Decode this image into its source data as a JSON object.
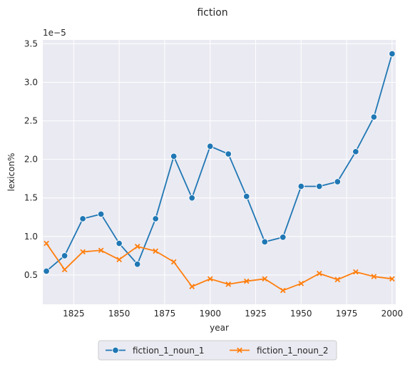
{
  "chart_data": {
    "type": "line",
    "title": "fiction",
    "xlabel": "year",
    "ylabel": "lexicon%",
    "y_offset_label": "1e−5",
    "xlim": [
      1808,
      2002
    ],
    "ylim": [
      0.12,
      3.55
    ],
    "x_ticks": [
      1825,
      1850,
      1875,
      1900,
      1925,
      1950,
      1975,
      2000
    ],
    "x_tick_labels": [
      "1825",
      "1850",
      "1875",
      "1900",
      "1925",
      "1950",
      "1975",
      "2000"
    ],
    "y_ticks": [
      0.5,
      1.0,
      1.5,
      2.0,
      2.5,
      3.0,
      3.5
    ],
    "y_tick_labels": [
      "0.5",
      "1.0",
      "1.5",
      "2.0",
      "2.5",
      "3.0",
      "3.5"
    ],
    "grid": true,
    "legend_position": "bottom-center",
    "x": [
      1810,
      1820,
      1830,
      1840,
      1850,
      1860,
      1870,
      1880,
      1890,
      1900,
      1910,
      1920,
      1930,
      1940,
      1950,
      1960,
      1970,
      1980,
      1990,
      2000
    ],
    "series": [
      {
        "name": "fiction_1_noun_1",
        "color": "#1f77b4",
        "marker": "circle",
        "values": [
          0.55,
          0.75,
          1.23,
          1.29,
          0.91,
          0.64,
          1.23,
          2.04,
          1.5,
          2.17,
          2.07,
          1.52,
          0.93,
          0.99,
          1.65,
          1.65,
          1.71,
          2.1,
          2.55,
          3.37
        ]
      },
      {
        "name": "fiction_1_noun_2",
        "color": "#ff7f0e",
        "marker": "x",
        "values": [
          0.91,
          0.57,
          0.8,
          0.82,
          0.7,
          0.87,
          0.81,
          0.67,
          0.35,
          0.45,
          0.38,
          0.42,
          0.45,
          0.3,
          0.39,
          0.52,
          0.44,
          0.54,
          0.48,
          0.45
        ]
      }
    ]
  }
}
